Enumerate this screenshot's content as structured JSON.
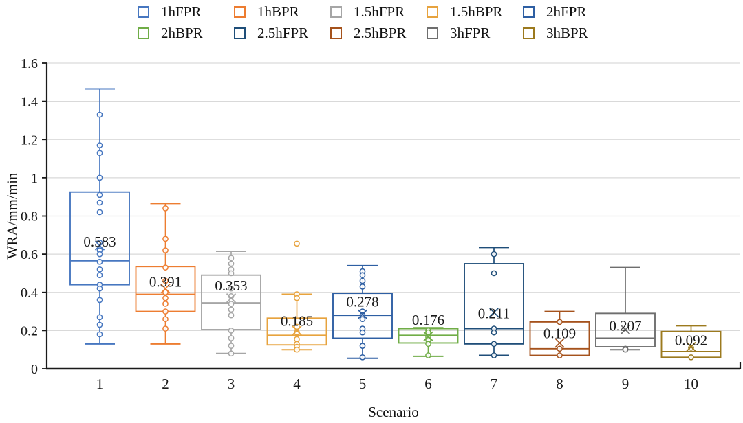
{
  "chart_data": {
    "type": "boxplot",
    "title": "",
    "xlabel": "Scenario",
    "ylabel": "WRA/mm/min",
    "ylim": [
      0,
      1.6
    ],
    "grid": true,
    "gridline_color": "#d9d9d9",
    "axis_color": "#1a1a1a",
    "label_color": "#1a1a1a",
    "legend_position": "top",
    "yticks": [
      {
        "v": 0,
        "label": "0"
      },
      {
        "v": 0.2,
        "label": "0.2"
      },
      {
        "v": 0.4,
        "label": "0.4"
      },
      {
        "v": 0.6,
        "label": "0.6"
      },
      {
        "v": 0.8,
        "label": "0.8"
      },
      {
        "v": 1,
        "label": "1"
      },
      {
        "v": 1.2,
        "label": "1.2"
      },
      {
        "v": 1.4,
        "label": "1.4"
      },
      {
        "v": 1.6,
        "label": "1.6"
      }
    ],
    "categories": [
      "1",
      "2",
      "3",
      "4",
      "5",
      "6",
      "7",
      "8",
      "9",
      "10"
    ],
    "series": [
      {
        "name": "1hFPR",
        "scenario": "1",
        "color": "#4777C0",
        "whisker_low": 0.13,
        "q1": 0.44,
        "median": 0.565,
        "q3": 0.925,
        "whisker_high": 1.465,
        "mean_label": "0.583",
        "label_y": 0.665,
        "mean_marker_y": 0.645,
        "points": [
          1.33,
          1.17,
          1.13,
          1.0,
          0.91,
          0.87,
          0.82,
          0.66,
          0.62,
          0.6,
          0.56,
          0.52,
          0.49,
          0.44,
          0.42,
          0.36,
          0.27,
          0.23,
          0.18
        ]
      },
      {
        "name": "1hBPR",
        "scenario": "2",
        "color": "#ED7D31",
        "whisker_low": 0.13,
        "q1": 0.3,
        "median": 0.39,
        "q3": 0.535,
        "whisker_high": 0.865,
        "mean_label": "0.391",
        "label_y": 0.455,
        "mean_marker_y": 0.42,
        "points": [
          0.84,
          0.68,
          0.62,
          0.53,
          0.46,
          0.4,
          0.37,
          0.34,
          0.3,
          0.26,
          0.21
        ]
      },
      {
        "name": "1.5hFPR",
        "scenario": "3",
        "color": "#A6A6A6",
        "whisker_low": 0.08,
        "q1": 0.205,
        "median": 0.345,
        "q3": 0.49,
        "whisker_high": 0.615,
        "mean_label": "0.353",
        "label_y": 0.435,
        "mean_marker_y": 0.37,
        "points": [
          0.58,
          0.55,
          0.52,
          0.5,
          0.42,
          0.38,
          0.34,
          0.31,
          0.28,
          0.2,
          0.16,
          0.12,
          0.08
        ]
      },
      {
        "name": "1.5hBPR",
        "scenario": "4",
        "color": "#E7A33E",
        "whisker_low": 0.1,
        "q1": 0.125,
        "median": 0.175,
        "q3": 0.265,
        "whisker_high": 0.39,
        "mean_label": "0.185",
        "label_y": 0.25,
        "mean_marker_y": 0.2,
        "points": [
          0.655,
          0.39,
          0.37,
          0.22,
          0.19,
          0.155,
          0.13,
          0.115,
          0.1
        ]
      },
      {
        "name": "2hFPR",
        "scenario": "5",
        "color": "#2E5FA3",
        "whisker_low": 0.055,
        "q1": 0.16,
        "median": 0.28,
        "q3": 0.395,
        "whisker_high": 0.54,
        "mean_label": "0.278",
        "label_y": 0.35,
        "mean_marker_y": 0.285,
        "points": [
          0.51,
          0.49,
          0.46,
          0.43,
          0.3,
          0.28,
          0.26,
          0.21,
          0.19,
          0.12,
          0.06
        ]
      },
      {
        "name": "2hBPR",
        "scenario": "6",
        "color": "#70AD47",
        "whisker_low": 0.065,
        "q1": 0.135,
        "median": 0.175,
        "q3": 0.21,
        "whisker_high": 0.215,
        "mean_label": "0.176",
        "label_y": 0.255,
        "mean_marker_y": 0.17,
        "points": [
          0.2,
          0.19,
          0.165,
          0.15,
          0.13,
          0.07
        ]
      },
      {
        "name": "2.5hFPR",
        "scenario": "7",
        "color": "#1F4E79",
        "whisker_low": 0.07,
        "q1": 0.13,
        "median": 0.21,
        "q3": 0.55,
        "whisker_high": 0.635,
        "mean_label": "0.211",
        "label_y": 0.29,
        "mean_marker_y": 0.295,
        "points": [
          0.6,
          0.5,
          0.21,
          0.19,
          0.13,
          0.07
        ]
      },
      {
        "name": "2.5hBPR",
        "scenario": "8",
        "color": "#A5521C",
        "whisker_low": 0.07,
        "q1": 0.07,
        "median": 0.105,
        "q3": 0.245,
        "whisker_high": 0.3,
        "mean_label": "0.109",
        "label_y": 0.185,
        "mean_marker_y": 0.135,
        "points": [
          0.245,
          0.105,
          0.07
        ]
      },
      {
        "name": "3hFPR",
        "scenario": "9",
        "color": "#6E6E6E",
        "whisker_low": 0.1,
        "q1": 0.115,
        "median": 0.16,
        "q3": 0.29,
        "whisker_high": 0.53,
        "mean_label": "0.207",
        "label_y": 0.225,
        "mean_marker_y": 0.205,
        "points": [
          0.105,
          0.1
        ]
      },
      {
        "name": "3hBPR",
        "scenario": "10",
        "color": "#9C7A1E",
        "whisker_low": 0.06,
        "q1": 0.06,
        "median": 0.09,
        "q3": 0.195,
        "whisker_high": 0.225,
        "mean_label": "0.092",
        "label_y": 0.15,
        "mean_marker_y": 0.115,
        "points": [
          0.11,
          0.06
        ]
      }
    ]
  }
}
